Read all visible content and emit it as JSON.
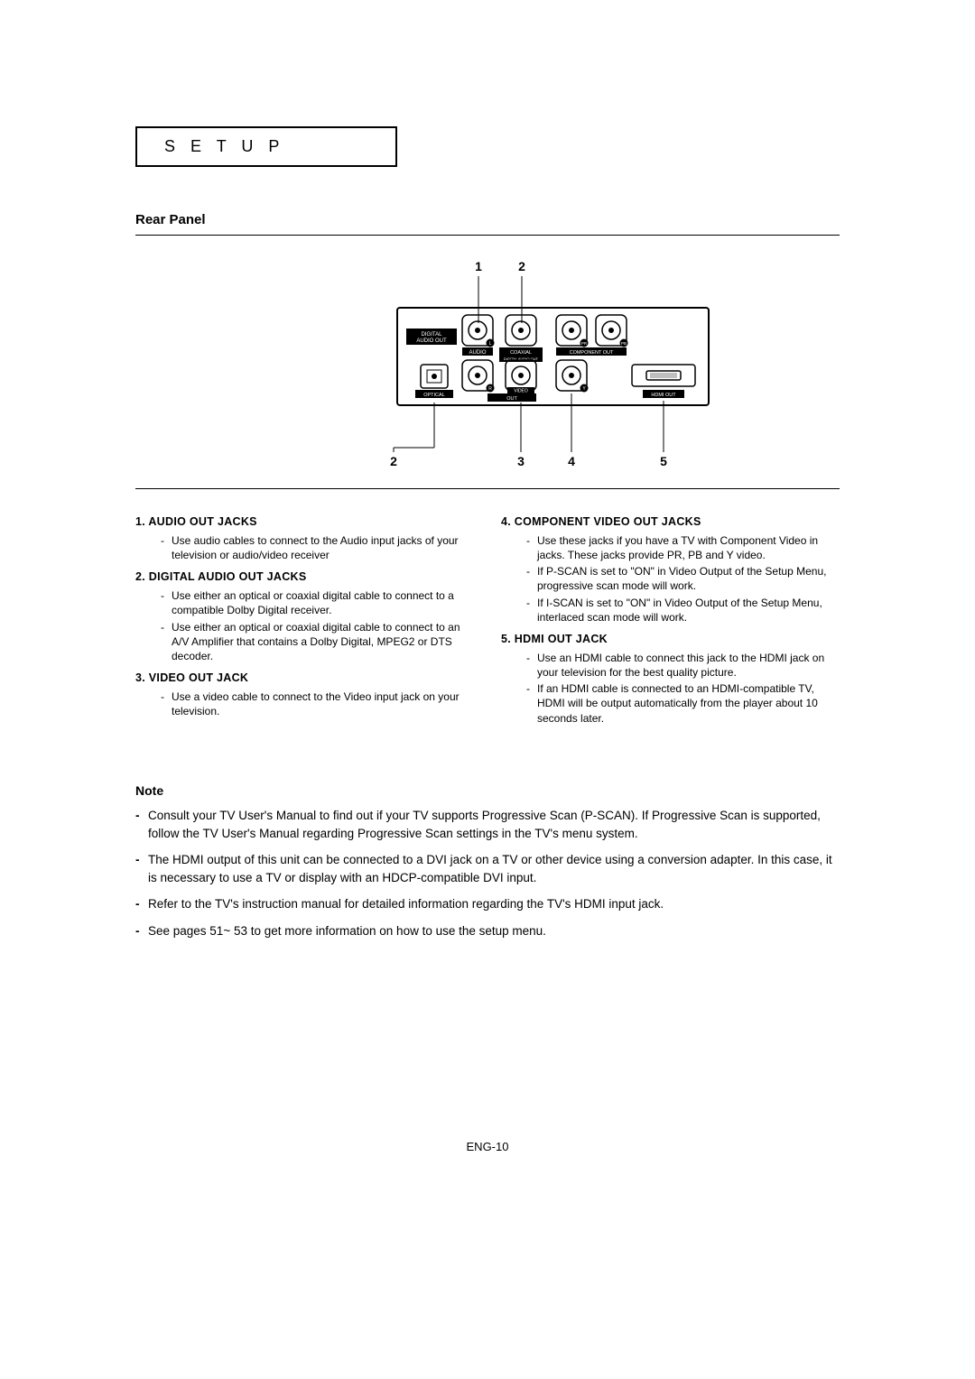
{
  "setup_title": "S E T U P",
  "rear_panel_heading": "Rear Panel",
  "diagram": {
    "top_labels": [
      "1",
      "2"
    ],
    "bottom_labels": [
      "2",
      "3",
      "4",
      "5"
    ],
    "jack_labels": {
      "digital_audio_out_top": "DIGITAL",
      "digital_audio_out_bottom": "AUDIO OUT",
      "audio": "AUDIO",
      "l": "L",
      "r": "R",
      "coaxial": "COAXIAL",
      "digital_audio_out_small": "DIGITAL AUDIO OUT",
      "component_out": "COMPONENT OUT",
      "pr": "PR",
      "pb": "PB",
      "y": "Y",
      "optical": "OPTICAL",
      "video": "VIDEO",
      "out": "OUT",
      "hdmi_out": "HDMI OUT"
    },
    "colors": {
      "panel_fill": "#ffffff",
      "panel_stroke": "#000000",
      "label_bg": "#000000",
      "label_text": "#ffffff",
      "line": "#000000"
    }
  },
  "left_column": [
    {
      "num": "1.",
      "title": "AUDIO OUT JACKS",
      "bullets": [
        "Use audio cables to connect to the Audio input jacks of your television or audio/video receiver"
      ]
    },
    {
      "num": "2.",
      "title": "DIGITAL AUDIO OUT JACKS",
      "bullets": [
        "Use either an optical or coaxial digital cable to connect to a compatible Dolby Digital receiver.",
        "Use either an optical or coaxial digital cable to connect to an A/V Amplifier that contains a Dolby Digital, MPEG2 or DTS decoder."
      ]
    },
    {
      "num": "3.",
      "title": "VIDEO OUT JACK",
      "bullets": [
        "Use a video cable to connect to the Video input jack on your television."
      ]
    }
  ],
  "right_column": [
    {
      "num": "4.",
      "title": "COMPONENT VIDEO OUT JACKS",
      "bullets": [
        "Use these jacks if you have a TV with Component Video in jacks. These jacks provide PR, PB and Y video.",
        "If P-SCAN is set to \"ON\" in Video Output of the Setup Menu, progressive scan mode will work.",
        "If I-SCAN is set to \"ON\" in Video Output of the Setup Menu, interlaced scan mode will work."
      ]
    },
    {
      "num": "5.",
      "title": "HDMI OUT JACK",
      "bullets": [
        "Use an HDMI cable to connect this jack to the HDMI jack on your television for the best quality picture.",
        "If an HDMI cable is connected to an HDMI-compatible TV, HDMI will be output automatically from the player about 10 seconds later."
      ]
    }
  ],
  "note_heading": "Note",
  "notes": [
    "Consult your TV User's Manual to find out if your TV supports Progressive Scan (P-SCAN). If Progressive Scan is supported, follow the TV User's Manual regarding Progressive Scan settings in the TV's menu system.",
    "The HDMI output of this unit can be connected to a DVI jack on a TV or other device using a conversion adapter. In this case, it is necessary to use a TV or display with an HDCP-compatible DVI input.",
    "Refer to the TV's instruction manual for detailed information regarding the TV's HDMI input jack.",
    "See pages 51~ 53 to get more information on how to use the setup menu."
  ],
  "page_number": "ENG-10"
}
